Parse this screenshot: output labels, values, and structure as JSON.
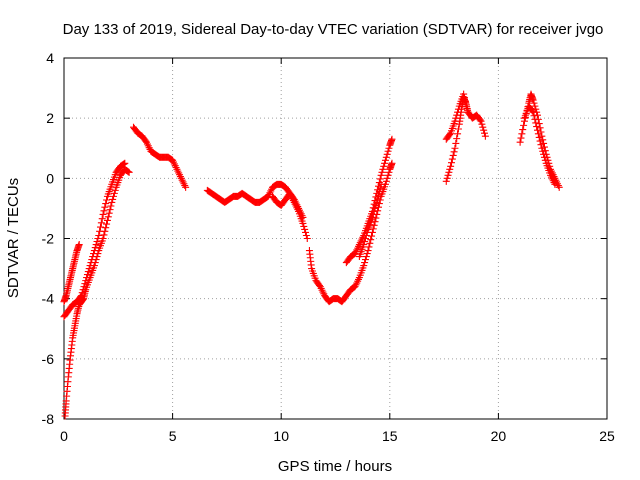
{
  "chart_data": {
    "type": "scatter",
    "title": "Day 133 of 2019, Sidereal Day-to-day VTEC variation (SDTVAR) for receiver jvgo",
    "xlabel": "GPS time / hours",
    "ylabel": "SDTVAR / TECUs",
    "xlim": [
      0,
      25
    ],
    "ylim": [
      -8,
      4
    ],
    "xticks": [
      0,
      5,
      10,
      15,
      20,
      25
    ],
    "xtick_labels": [
      "0",
      "5",
      "10",
      "15",
      "20",
      "25"
    ],
    "yticks": [
      -8,
      -6,
      -4,
      -2,
      0,
      2,
      4
    ],
    "ytick_labels": [
      "-8",
      "-6",
      "-4",
      "-2",
      "0",
      "2",
      "4"
    ],
    "grid": true,
    "marker": "+",
    "color": "#ff0000",
    "series": [
      {
        "name": "SDTVAR",
        "segments": [
          [
            [
              0.0,
              -4.1
            ],
            [
              0.1,
              -3.9
            ],
            [
              0.2,
              -3.6
            ],
            [
              0.3,
              -3.3
            ],
            [
              0.4,
              -3.0
            ],
            [
              0.5,
              -2.7
            ],
            [
              0.6,
              -2.4
            ],
            [
              0.7,
              -2.2
            ]
          ],
          [
            [
              0.05,
              -7.9
            ],
            [
              0.1,
              -7.4
            ],
            [
              0.2,
              -6.6
            ],
            [
              0.3,
              -5.9
            ],
            [
              0.4,
              -5.3
            ],
            [
              0.5,
              -4.9
            ],
            [
              0.6,
              -4.5
            ],
            [
              0.7,
              -4.2
            ],
            [
              0.8,
              -4.1
            ],
            [
              0.9,
              -4.0
            ],
            [
              1.0,
              -3.7
            ],
            [
              1.2,
              -3.3
            ],
            [
              1.4,
              -2.9
            ],
            [
              1.6,
              -2.4
            ],
            [
              1.8,
              -2.0
            ],
            [
              2.0,
              -1.4
            ],
            [
              2.2,
              -0.8
            ],
            [
              2.4,
              -0.3
            ],
            [
              2.6,
              0.1
            ],
            [
              2.8,
              0.3
            ],
            [
              3.0,
              0.2
            ]
          ],
          [
            [
              0.0,
              -4.6
            ],
            [
              0.2,
              -4.4
            ],
            [
              0.4,
              -4.2
            ],
            [
              0.6,
              -4.1
            ],
            [
              0.8,
              -3.9
            ],
            [
              1.0,
              -3.4
            ],
            [
              1.2,
              -2.9
            ],
            [
              1.4,
              -2.4
            ],
            [
              1.6,
              -1.9
            ],
            [
              1.8,
              -1.2
            ],
            [
              2.0,
              -0.6
            ],
            [
              2.2,
              -0.2
            ],
            [
              2.4,
              0.2
            ],
            [
              2.6,
              0.4
            ],
            [
              2.8,
              0.5
            ]
          ],
          [
            [
              3.2,
              1.7
            ],
            [
              3.4,
              1.5
            ],
            [
              3.6,
              1.4
            ],
            [
              3.8,
              1.2
            ],
            [
              4.0,
              0.9
            ],
            [
              4.2,
              0.8
            ],
            [
              4.4,
              0.7
            ],
            [
              4.6,
              0.7
            ],
            [
              4.8,
              0.7
            ],
            [
              5.0,
              0.6
            ],
            [
              5.2,
              0.3
            ],
            [
              5.4,
              0.0
            ],
            [
              5.6,
              -0.3
            ]
          ],
          [
            [
              6.6,
              -0.4
            ],
            [
              6.8,
              -0.5
            ],
            [
              7.0,
              -0.6
            ],
            [
              7.2,
              -0.7
            ],
            [
              7.4,
              -0.8
            ],
            [
              7.6,
              -0.7
            ],
            [
              7.8,
              -0.6
            ],
            [
              8.0,
              -0.6
            ],
            [
              8.2,
              -0.5
            ],
            [
              8.4,
              -0.6
            ],
            [
              8.6,
              -0.7
            ],
            [
              8.8,
              -0.8
            ],
            [
              9.0,
              -0.8
            ],
            [
              9.2,
              -0.7
            ],
            [
              9.4,
              -0.6
            ],
            [
              9.6,
              -0.3
            ],
            [
              9.8,
              -0.2
            ],
            [
              10.0,
              -0.2
            ],
            [
              10.2,
              -0.3
            ],
            [
              10.4,
              -0.5
            ],
            [
              10.6,
              -0.8
            ],
            [
              10.8,
              -1.1
            ],
            [
              11.0,
              -1.5
            ],
            [
              11.2,
              -2.0
            ]
          ],
          [
            [
              9.6,
              -0.6
            ],
            [
              9.8,
              -0.8
            ],
            [
              10.0,
              -0.9
            ],
            [
              10.2,
              -0.7
            ],
            [
              10.4,
              -0.5
            ],
            [
              10.6,
              -0.7
            ],
            [
              10.8,
              -1.0
            ],
            [
              11.0,
              -1.3
            ]
          ],
          [
            [
              11.3,
              -2.4
            ],
            [
              11.4,
              -3.0
            ],
            [
              11.6,
              -3.4
            ],
            [
              11.8,
              -3.6
            ],
            [
              12.0,
              -3.9
            ],
            [
              12.2,
              -4.1
            ],
            [
              12.4,
              -4.0
            ],
            [
              12.6,
              -4.0
            ],
            [
              12.8,
              -4.1
            ],
            [
              13.0,
              -3.9
            ],
            [
              13.2,
              -3.7
            ],
            [
              13.4,
              -3.6
            ],
            [
              13.6,
              -3.3
            ],
            [
              13.8,
              -2.9
            ],
            [
              14.0,
              -2.4
            ],
            [
              14.2,
              -1.8
            ],
            [
              14.4,
              -1.2
            ],
            [
              14.6,
              -0.6
            ],
            [
              14.8,
              -0.2
            ],
            [
              15.0,
              0.3
            ],
            [
              15.1,
              0.5
            ]
          ],
          [
            [
              13.0,
              -2.8
            ],
            [
              13.2,
              -2.6
            ],
            [
              13.4,
              -2.5
            ],
            [
              13.6,
              -2.2
            ],
            [
              13.8,
              -1.9
            ],
            [
              14.0,
              -1.5
            ],
            [
              14.2,
              -1.1
            ],
            [
              14.4,
              -0.5
            ],
            [
              14.6,
              0.1
            ],
            [
              14.8,
              0.6
            ],
            [
              15.0,
              1.1
            ],
            [
              15.1,
              1.3
            ]
          ],
          [
            [
              13.6,
              -2.6
            ],
            [
              13.8,
              -2.2
            ],
            [
              14.0,
              -1.7
            ],
            [
              14.2,
              -1.3
            ],
            [
              14.4,
              -0.8
            ],
            [
              14.6,
              -0.2
            ]
          ],
          [
            [
              17.6,
              -0.1
            ],
            [
              17.8,
              0.4
            ],
            [
              18.0,
              1.0
            ],
            [
              18.2,
              1.8
            ],
            [
              18.3,
              2.3
            ],
            [
              18.4,
              2.7
            ],
            [
              18.5,
              2.5
            ],
            [
              18.6,
              2.2
            ],
            [
              18.8,
              2.0
            ],
            [
              19.0,
              2.1
            ],
            [
              19.2,
              1.9
            ],
            [
              19.4,
              1.4
            ]
          ],
          [
            [
              17.6,
              1.3
            ],
            [
              17.8,
              1.5
            ],
            [
              18.0,
              1.9
            ],
            [
              18.2,
              2.4
            ],
            [
              18.4,
              2.8
            ],
            [
              18.6,
              2.2
            ]
          ],
          [
            [
              21.0,
              1.2
            ],
            [
              21.2,
              1.9
            ],
            [
              21.4,
              2.5
            ],
            [
              21.5,
              2.8
            ],
            [
              21.6,
              2.6
            ],
            [
              21.8,
              2.1
            ],
            [
              22.0,
              1.4
            ],
            [
              22.2,
              0.8
            ],
            [
              22.4,
              0.3
            ],
            [
              22.6,
              0.0
            ],
            [
              22.8,
              -0.3
            ]
          ],
          [
            [
              21.2,
              2.0
            ],
            [
              21.4,
              2.4
            ],
            [
              21.6,
              2.2
            ],
            [
              21.8,
              1.6
            ],
            [
              22.0,
              1.0
            ],
            [
              22.2,
              0.5
            ],
            [
              22.4,
              0.1
            ],
            [
              22.6,
              -0.2
            ]
          ]
        ]
      }
    ]
  }
}
